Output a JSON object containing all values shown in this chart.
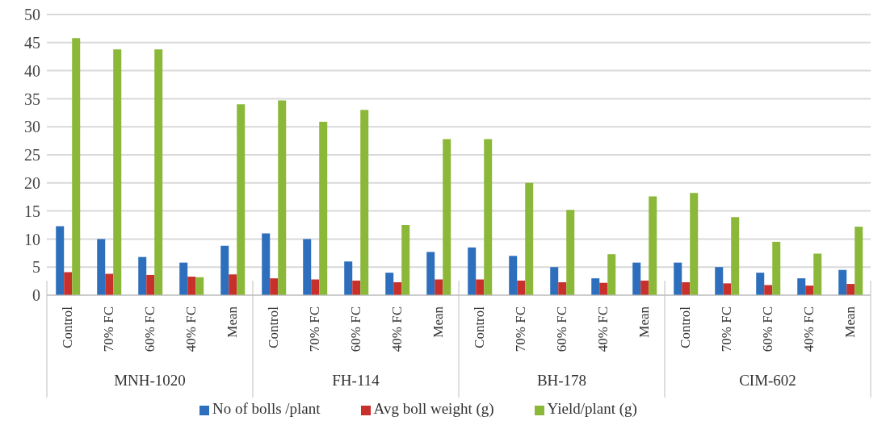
{
  "chart_data": {
    "type": "bar",
    "categories": [
      "Control",
      "70% FC",
      "60% FC",
      "40% FC",
      "Mean",
      "Control",
      "70% FC",
      "60% FC",
      "40% FC",
      "Mean",
      "Control",
      "70% FC",
      "60% FC",
      "40% FC",
      "Mean",
      "Control",
      "70% FC",
      "60% FC",
      "40% FC",
      "Mean"
    ],
    "series": [
      {
        "name": "No of bolls /plant",
        "color": "#2e6fbd",
        "values": [
          12.3,
          10,
          6.8,
          5.8,
          8.8,
          11,
          10,
          6,
          4,
          7.7,
          8.5,
          7,
          5,
          3,
          5.8,
          5.8,
          5,
          4,
          3,
          4.5
        ]
      },
      {
        "name": "Avg boll weight (g)",
        "color": "#c8302c",
        "values": [
          4.1,
          3.8,
          3.6,
          3.3,
          3.7,
          3,
          2.8,
          2.6,
          2.3,
          2.8,
          2.8,
          2.6,
          2.3,
          2.2,
          2.6,
          2.3,
          2.1,
          1.8,
          1.7,
          2
        ]
      },
      {
        "name": "Yield/plant (g)",
        "color": "#8cb83a",
        "values": [
          45.8,
          43.8,
          43.8,
          3.2,
          34,
          34.7,
          30.9,
          33,
          12.5,
          27.8,
          27.8,
          20,
          15.2,
          7.3,
          17.6,
          18.2,
          13.9,
          9.5,
          7.4,
          12.2
        ]
      }
    ],
    "annotations": [
      "MNH-1020",
      "FH-114",
      "BH-178",
      "CIM-602"
    ],
    "ylim": [
      0,
      50
    ],
    "yticks": [
      0,
      5,
      10,
      15,
      20,
      25,
      30,
      35,
      40,
      45,
      50
    ],
    "grid": "y",
    "legend": "bottom"
  }
}
